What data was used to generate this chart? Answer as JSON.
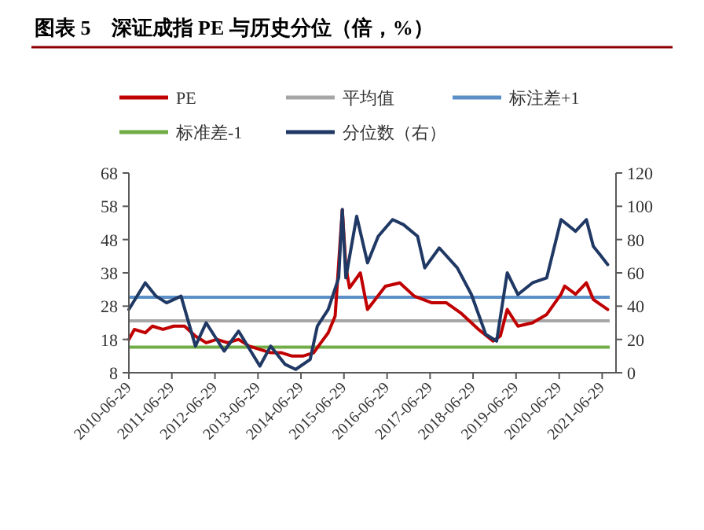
{
  "chart_data": {
    "type": "line",
    "title": "图表 5　深证成指 PE 与历史分位（倍，%）",
    "xlim": [
      "2010-06-29",
      "2021-09-01"
    ],
    "xticks": [
      "2010-06-29",
      "2011-06-29",
      "2012-06-29",
      "2013-06-29",
      "2014-06-29",
      "2015-06-29",
      "2016-06-29",
      "2017-06-29",
      "2018-06-29",
      "2019-06-29",
      "2020-06-29",
      "2021-06-29"
    ],
    "ylim": [
      8,
      68
    ],
    "yticks": [
      8,
      18,
      28,
      38,
      48,
      58,
      68
    ],
    "y2lim": [
      0,
      120
    ],
    "y2ticks": [
      0,
      20,
      40,
      60,
      80,
      100,
      120
    ],
    "legend": "top",
    "grid": false,
    "ref_lines": [
      {
        "axis": "y",
        "value": 23.6,
        "label": "平均值",
        "color": "#a6a6a6"
      },
      {
        "axis": "y",
        "value": 30.7,
        "label": "标注差+1",
        "color": "#5b8fc7"
      },
      {
        "axis": "y",
        "value": 15.7,
        "label": "标准差-1",
        "color": "#70ad47"
      }
    ],
    "series": [
      {
        "name": "PE",
        "color": "#c00000",
        "x": [
          "2010-06-29",
          "2010-08",
          "2010-11",
          "2011-01",
          "2011-04",
          "2011-07",
          "2011-10",
          "2012-01",
          "2012-04",
          "2012-07",
          "2012-10",
          "2013-01",
          "2013-04",
          "2013-07",
          "2013-10",
          "2014-01",
          "2014-04",
          "2014-07",
          "2014-10",
          "2014-12",
          "2015-02",
          "2015-04",
          "2015-06",
          "2015-07",
          "2015-08",
          "2015-11",
          "2016-01",
          "2016-06",
          "2016-10",
          "2017-02",
          "2017-07",
          "2017-11",
          "2018-03",
          "2018-08",
          "2018-12",
          "2019-02",
          "2019-04",
          "2019-07",
          "2019-11",
          "2020-03",
          "2020-07",
          "2020-08",
          "2020-11",
          "2021-02",
          "2021-04",
          "2021-08"
        ],
        "values": [
          18,
          21,
          20,
          22,
          21,
          22,
          22,
          19,
          17,
          18,
          17,
          18,
          16,
          15,
          14,
          14,
          13,
          13,
          14,
          17,
          20,
          25,
          57,
          40,
          33.5,
          38,
          27,
          34,
          35,
          31,
          29,
          29,
          26,
          21,
          17.5,
          19,
          27,
          22,
          23,
          25.5,
          31.6,
          34,
          31.6,
          35,
          30,
          27
        ]
      },
      {
        "name": "分位数（右）",
        "color": "#1f3864",
        "axis": "y2",
        "x": [
          "2010-06-29",
          "2010-11",
          "2011-02",
          "2011-05",
          "2011-09",
          "2012-01",
          "2012-04",
          "2012-09",
          "2013-01",
          "2013-07",
          "2013-10",
          "2014-02",
          "2014-05",
          "2014-09",
          "2014-11",
          "2015-02",
          "2015-05",
          "2015-06",
          "2015-07",
          "2015-10",
          "2016-01",
          "2016-04",
          "2016-08",
          "2016-11",
          "2017-03",
          "2017-05",
          "2017-09",
          "2018-02",
          "2018-06",
          "2018-10",
          "2019-01",
          "2019-04",
          "2019-07",
          "2019-11",
          "2020-03",
          "2020-07",
          "2020-11",
          "2021-02",
          "2021-04",
          "2021-08"
        ],
        "values": [
          38,
          54,
          46,
          42,
          46,
          16,
          30,
          13,
          25,
          4,
          16,
          5,
          2,
          8,
          28,
          38,
          57,
          98,
          57,
          94,
          66,
          82,
          92,
          89,
          82,
          63,
          75,
          63,
          47,
          23,
          19,
          60,
          47,
          54,
          57,
          92,
          85,
          92,
          76,
          65
        ]
      }
    ]
  }
}
